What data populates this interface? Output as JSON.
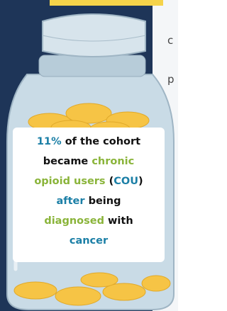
{
  "side_fragments": [
    "c",
    "p"
  ],
  "label": {
    "lines": [
      [
        {
          "text": "11%",
          "color": "#1b7fa6"
        },
        {
          "text": " of the cohort",
          "color": "#111111"
        }
      ],
      [
        {
          "text": "became ",
          "color": "#111111"
        },
        {
          "text": "chronic",
          "color": "#8ab43a"
        }
      ],
      [
        {
          "text": "opioid users ",
          "color": "#8ab43a"
        },
        {
          "text": "(",
          "color": "#111111"
        },
        {
          "text": "COU",
          "color": "#1b7fa6"
        },
        {
          "text": ")",
          "color": "#111111"
        }
      ],
      [
        {
          "text": "after",
          "color": "#1b7fa6"
        },
        {
          "text": " being",
          "color": "#111111"
        }
      ],
      [
        {
          "text": "diagnosed",
          "color": "#8ab43a"
        },
        {
          "text": " with",
          "color": "#111111"
        }
      ],
      [
        {
          "text": "cancer",
          "color": "#1b7fa6"
        }
      ]
    ]
  }
}
